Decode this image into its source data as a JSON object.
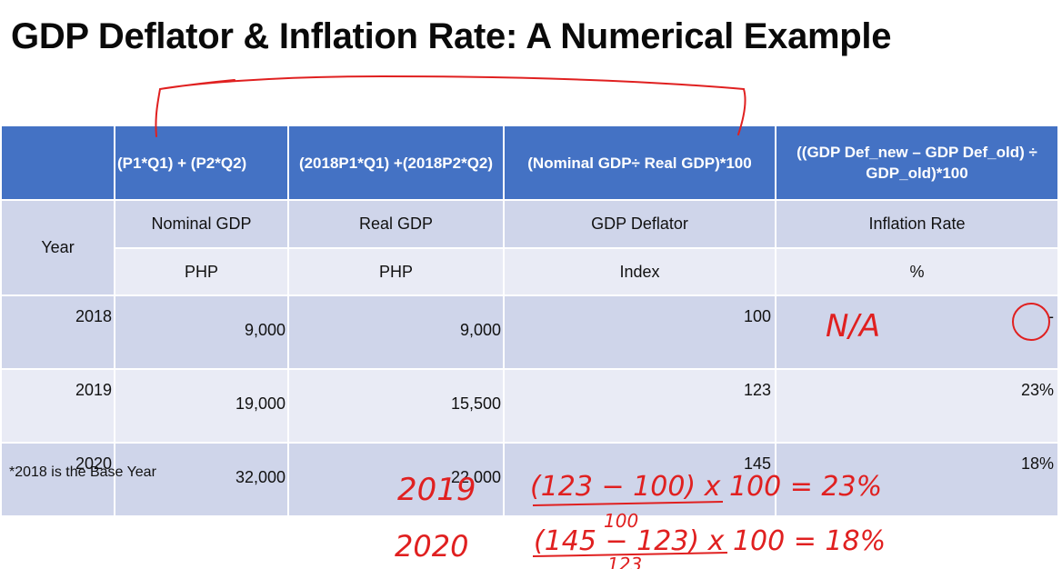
{
  "title": "GDP Deflator & Inflation Rate: A Numerical Example",
  "formulas": [
    "(P1*Q1) + (P2*Q2)",
    "(2018P1*Q1) +(2018P2*Q2)",
    "(Nominal GDP÷ Real GDP)*100",
    "((GDP Def_new – GDP Def_old) ÷ GDP_old)*100"
  ],
  "headers": {
    "year": "Year",
    "nominal": "Nominal GDP",
    "real": "Real GDP",
    "deflator": "GDP Deflator",
    "inflation": "Inflation Rate"
  },
  "units": {
    "nominal": "PHP",
    "real": "PHP",
    "deflator": "Index",
    "inflation": "%"
  },
  "rows": [
    {
      "year": "2018",
      "nominal": "9,000",
      "real": "9,000",
      "deflator": "100",
      "inflation": "-"
    },
    {
      "year": "2019",
      "nominal": "19,000",
      "real": "15,500",
      "deflator": "123",
      "inflation": "23%"
    },
    {
      "year": "2020",
      "nominal": "32,000",
      "real": "22,000",
      "deflator": "145",
      "inflation": "18%"
    }
  ],
  "footnote": "*2018 is the Base Year",
  "annotations": {
    "na": "N/A",
    "line2019_year": "2019",
    "line2019_expr": "(123 − 100) x 100 = 23%",
    "line2019_den": "100",
    "line2020_year": "2020",
    "line2020_expr": "(145 − 123) x 100 = 18%",
    "line2020_den": "123"
  },
  "colors": {
    "header_blue": "#4472c4",
    "band_dark": "#cfd5ea",
    "band_light": "#e9ebf5",
    "ink": "#e02020"
  }
}
